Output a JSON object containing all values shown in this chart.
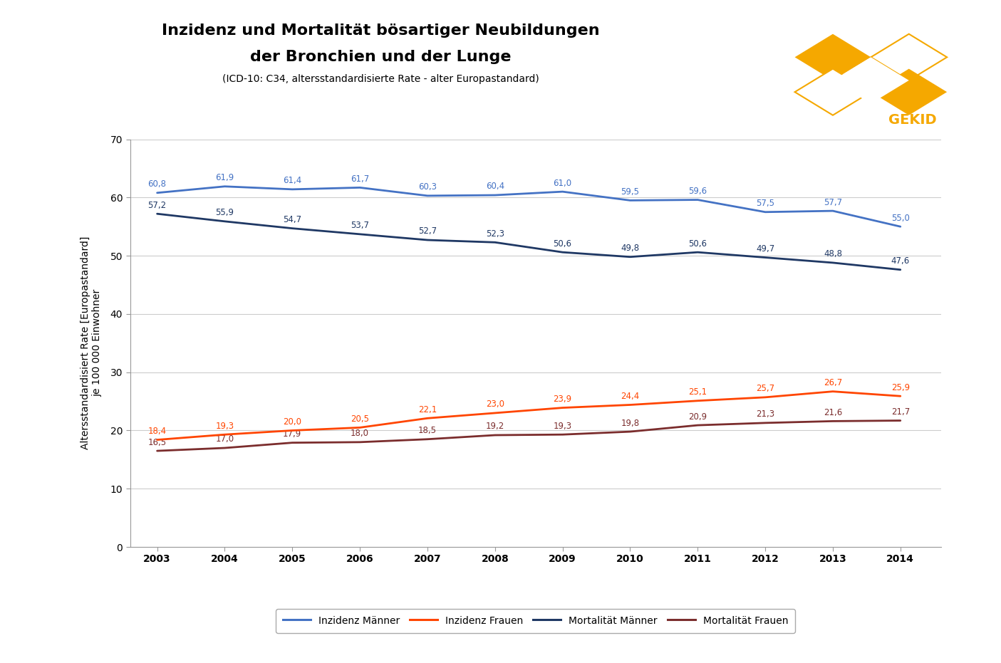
{
  "title_line1": "Inzidenz und Mortalität bösartiger Neubildungen",
  "title_line2": "der Bronchien und der Lunge",
  "subtitle": "(ICD-10: C34, altersstandardisierte Rate - alter Europastandard)",
  "ylabel": "Altersstandardisiert Rate [Europastandard]\nje 100 000 Einwohner",
  "years": [
    2003,
    2004,
    2005,
    2006,
    2007,
    2008,
    2009,
    2010,
    2011,
    2012,
    2013,
    2014
  ],
  "inzidenz_maenner": [
    60.8,
    61.9,
    61.4,
    61.7,
    60.3,
    60.4,
    61.0,
    59.5,
    59.6,
    57.5,
    57.7,
    55.0
  ],
  "inzidenz_frauen": [
    18.4,
    19.3,
    20.0,
    20.5,
    22.1,
    23.0,
    23.9,
    24.4,
    25.1,
    25.7,
    26.7,
    25.9
  ],
  "mortalitaet_maenner": [
    57.2,
    55.9,
    54.7,
    53.7,
    52.7,
    52.3,
    50.6,
    49.8,
    50.6,
    49.7,
    48.8,
    47.6
  ],
  "mortalitaet_frauen": [
    16.5,
    17.0,
    17.9,
    18.0,
    18.5,
    19.2,
    19.3,
    19.8,
    20.9,
    21.3,
    21.6,
    21.7
  ],
  "color_inzidenz_maenner": "#4472C4",
  "color_inzidenz_frauen": "#FF4500",
  "color_mortalitaet_maenner": "#1F3864",
  "color_mortalitaet_frauen": "#7B2D2D",
  "ylim": [
    0,
    70
  ],
  "yticks": [
    0,
    10,
    20,
    30,
    40,
    50,
    60,
    70
  ],
  "background_color": "#FFFFFF",
  "grid_color": "#CCCCCC",
  "legend_labels": [
    "Inzidenz Männer",
    "Inzidenz Frauen",
    "Mortalität Männer",
    "Mortalität Frauen"
  ],
  "label_fontsize": 8.5,
  "axis_tick_fontsize": 10,
  "title_fontsize": 16,
  "subtitle_fontsize": 10,
  "ylabel_fontsize": 10,
  "legend_fontsize": 10,
  "lw": 2.0
}
